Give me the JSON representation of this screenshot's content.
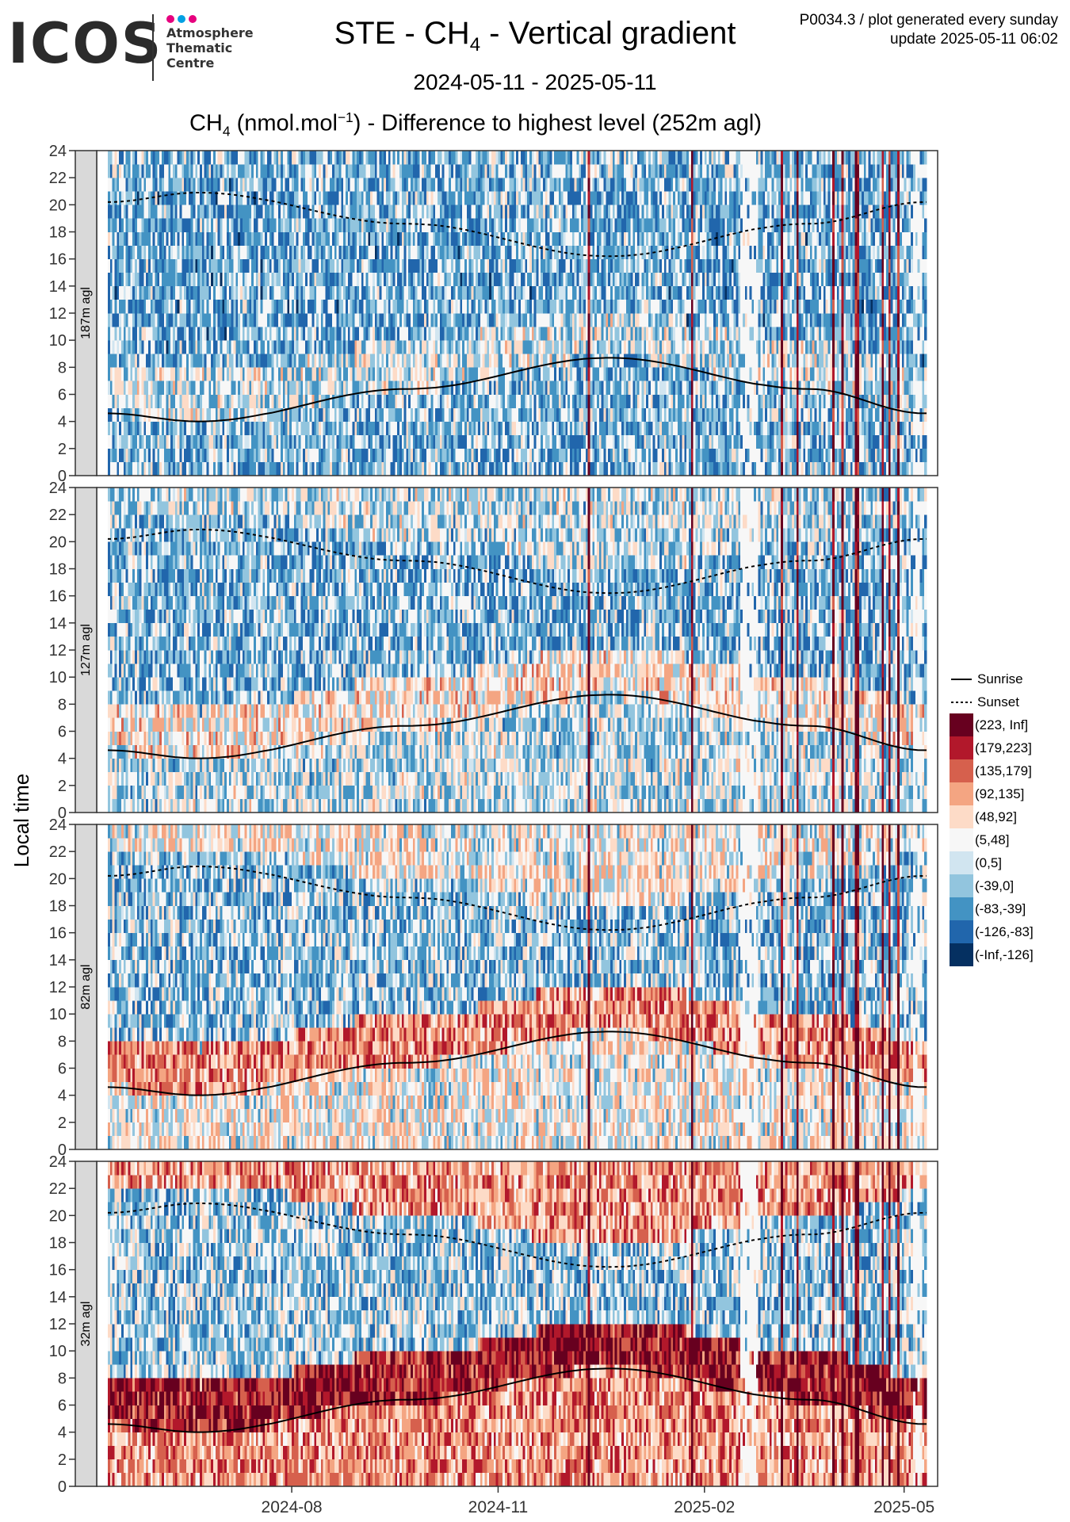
{
  "header": {
    "logo": {
      "text": "ICOS",
      "sub": [
        "Atmosphere",
        "Thematic",
        "Centre"
      ],
      "dot_colors": [
        "#e6007e",
        "#00a0e3",
        "#e6007e"
      ]
    },
    "title_pre": "STE - CH",
    "title_sub": "4",
    "title_post": " - Vertical gradient",
    "period": "2024-05-11 - 2025-05-11",
    "plot_title": {
      "pre": "CH",
      "sub": "4",
      "mid": " (nmol.mol",
      "sup": "−1",
      "post": ") - Difference to highest level (252m agl)"
    },
    "meta_line1": "P0034.3 / plot generated every sunday",
    "meta_line2": "update  2025-05-11 06:02"
  },
  "chart_data": {
    "type": "heatmap",
    "ylabel": "Local time",
    "x_range": [
      "2024-05-11",
      "2025-05-11"
    ],
    "x_ticks": [
      "2024-08",
      "2024-11",
      "2025-02",
      "2025-05"
    ],
    "y_ticks": [
      0,
      2,
      4,
      6,
      8,
      10,
      12,
      14,
      16,
      18,
      20,
      22,
      24
    ],
    "ylim": [
      0,
      24
    ],
    "panels": [
      "187m agl",
      "127m agl",
      "82m agl",
      "32m agl"
    ],
    "bins": [
      "(223, Inf]",
      "(179,223]",
      "(135,179]",
      "(92,135]",
      "(48,92]",
      "(5,48]",
      "(0,5]",
      "(-39,0]",
      "(-83,-39]",
      "(-126,-83]",
      "(-Inf,-126]"
    ],
    "bin_colors": [
      "#67001f",
      "#b2182b",
      "#d6604d",
      "#f4a582",
      "#fddbc7",
      "#f7f7f7",
      "#d1e5f0",
      "#92c5de",
      "#4393c3",
      "#2166ac",
      "#053061"
    ],
    "sunrise": {
      "name": "Sunrise",
      "dates": [
        "2024-05-11",
        "2024-06-21",
        "2024-09-22",
        "2024-12-21",
        "2025-03-20",
        "2025-05-11"
      ],
      "hours": [
        4.6,
        4.0,
        6.4,
        8.7,
        6.4,
        4.6
      ]
    },
    "sunset": {
      "name": "Sunset",
      "dates": [
        "2024-05-11",
        "2024-06-21",
        "2024-09-22",
        "2024-12-21",
        "2025-03-20",
        "2025-05-11"
      ],
      "hours": [
        20.2,
        20.9,
        18.6,
        16.2,
        18.6,
        20.2
      ]
    },
    "panel_profiles": [
      {
        "night": -30,
        "day": -38,
        "morning": 10
      },
      {
        "night": 5,
        "day": -30,
        "morning": 55
      },
      {
        "night": 40,
        "day": -22,
        "morning": 125
      },
      {
        "night": 120,
        "day": -15,
        "morning": 215
      }
    ]
  }
}
